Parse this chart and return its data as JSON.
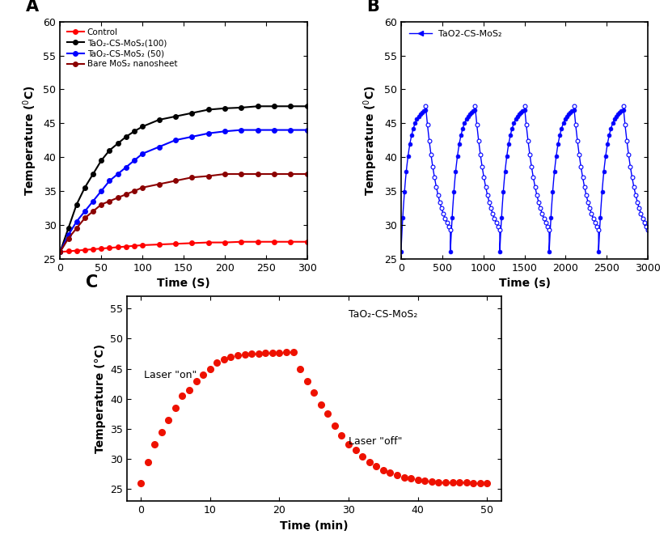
{
  "panel_A": {
    "title": "A",
    "xlabel": "Time (S)",
    "ylabel": "Temperature ( °C)",
    "ylabel_style": "superscript_0",
    "xlim": [
      0,
      300
    ],
    "ylim": [
      25,
      60
    ],
    "yticks": [
      25,
      30,
      35,
      40,
      45,
      50,
      55,
      60
    ],
    "xticks": [
      0,
      50,
      100,
      150,
      200,
      250,
      300
    ],
    "series": [
      {
        "label": "Control",
        "color": "#ff0000",
        "x": [
          0,
          10,
          20,
          30,
          40,
          50,
          60,
          70,
          80,
          90,
          100,
          120,
          140,
          160,
          180,
          200,
          220,
          240,
          260,
          280,
          300
        ],
        "y": [
          26.0,
          26.1,
          26.2,
          26.3,
          26.4,
          26.5,
          26.6,
          26.7,
          26.8,
          26.9,
          27.0,
          27.1,
          27.2,
          27.3,
          27.4,
          27.4,
          27.5,
          27.5,
          27.5,
          27.5,
          27.5
        ]
      },
      {
        "label": "TaO₂-CS-MoS₂(100)",
        "color": "#000000",
        "x": [
          0,
          10,
          20,
          30,
          40,
          50,
          60,
          70,
          80,
          90,
          100,
          120,
          140,
          160,
          180,
          200,
          220,
          240,
          260,
          280,
          300
        ],
        "y": [
          26.0,
          29.5,
          33.0,
          35.5,
          37.5,
          39.5,
          41.0,
          42.0,
          43.0,
          43.8,
          44.5,
          45.5,
          46.0,
          46.5,
          47.0,
          47.2,
          47.3,
          47.5,
          47.5,
          47.5,
          47.5
        ]
      },
      {
        "label": "TaO₂-CS-MoS₂ (50)",
        "color": "#0000ff",
        "x": [
          0,
          10,
          20,
          30,
          40,
          50,
          60,
          70,
          80,
          90,
          100,
          120,
          140,
          160,
          180,
          200,
          220,
          240,
          260,
          280,
          300
        ],
        "y": [
          26.0,
          28.5,
          30.5,
          32.0,
          33.5,
          35.0,
          36.5,
          37.5,
          38.5,
          39.5,
          40.5,
          41.5,
          42.5,
          43.0,
          43.5,
          43.8,
          44.0,
          44.0,
          44.0,
          44.0,
          44.0
        ]
      },
      {
        "label": "Bare MoS₂ nanosheet",
        "color": "#8b0000",
        "x": [
          0,
          10,
          20,
          30,
          40,
          50,
          60,
          70,
          80,
          90,
          100,
          120,
          140,
          160,
          180,
          200,
          220,
          240,
          260,
          280,
          300
        ],
        "y": [
          26.0,
          28.0,
          29.5,
          31.0,
          32.0,
          33.0,
          33.5,
          34.0,
          34.5,
          35.0,
          35.5,
          36.0,
          36.5,
          37.0,
          37.2,
          37.5,
          37.5,
          37.5,
          37.5,
          37.5,
          37.5
        ]
      }
    ]
  },
  "panel_B": {
    "title": "B",
    "xlabel": "Time (s)",
    "ylabel": "Temperature (°C)",
    "xlim": [
      0,
      3000
    ],
    "ylim": [
      25,
      60
    ],
    "yticks": [
      25,
      30,
      35,
      40,
      45,
      50,
      55,
      60
    ],
    "xticks": [
      0,
      500,
      1000,
      1500,
      2000,
      2500,
      3000
    ],
    "label": "TaO2-CS-MoS₂",
    "color": "#0000ff",
    "cycle_period": 600,
    "t_on": 300,
    "T_min": 26.0,
    "T_max": 47.5,
    "tau_heat": 80,
    "tau_cool": 160
  },
  "panel_C": {
    "title": "C",
    "xlabel": "Time (min)",
    "ylabel": "Temperature (°C)",
    "xlim": [
      -2,
      52
    ],
    "ylim": [
      23,
      57
    ],
    "yticks": [
      25,
      30,
      35,
      40,
      45,
      50,
      55
    ],
    "xticks": [
      0,
      10,
      20,
      30,
      40,
      50
    ],
    "label": "TaO₂-CS-MoS₂",
    "color": "#ee1100",
    "annotation_on": "Laser \"on\"",
    "annotation_off": "Laser \"off\"",
    "x_on": [
      0,
      1,
      2,
      3,
      4,
      5,
      6,
      7,
      8,
      9,
      10,
      11,
      12,
      13,
      14,
      15,
      16,
      17,
      18,
      19,
      20,
      21,
      22
    ],
    "y_on": [
      26.0,
      29.5,
      32.5,
      34.5,
      36.5,
      38.5,
      40.5,
      41.5,
      43.0,
      44.0,
      45.0,
      46.0,
      46.5,
      47.0,
      47.2,
      47.4,
      47.5,
      47.5,
      47.6,
      47.7,
      47.7,
      47.8,
      47.8
    ],
    "x_off": [
      23,
      24,
      25,
      26,
      27,
      28,
      29,
      30,
      31,
      32,
      33,
      34,
      35,
      36,
      37,
      38,
      39,
      40,
      41,
      42,
      43,
      44,
      45,
      46,
      47,
      48,
      49,
      50
    ],
    "y_off": [
      45.0,
      43.0,
      41.0,
      39.0,
      37.5,
      35.5,
      34.0,
      32.5,
      31.5,
      30.5,
      29.5,
      28.8,
      28.2,
      27.8,
      27.4,
      27.0,
      26.8,
      26.5,
      26.4,
      26.3,
      26.2,
      26.2,
      26.1,
      26.1,
      26.1,
      26.0,
      26.0,
      26.0
    ]
  }
}
